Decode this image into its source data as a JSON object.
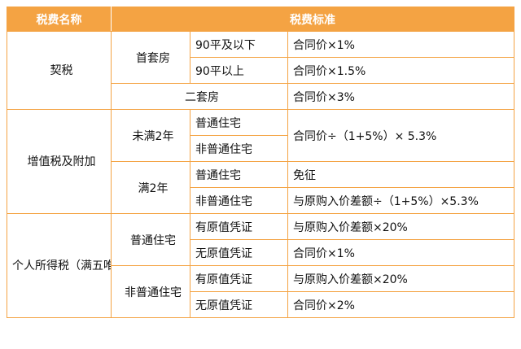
{
  "header": {
    "name": "税费名称",
    "standard": "税费标准"
  },
  "deed_tax": {
    "name": "契税",
    "first_home": "首套房",
    "rows": [
      {
        "area": "90平及以下",
        "value": "合同价×1%"
      },
      {
        "area": "90平以上",
        "value": "合同价×1.5%"
      }
    ],
    "second_home": {
      "label": "二套房",
      "value": "合同价×3%"
    }
  },
  "vat": {
    "name": "增值税及附加",
    "under2": {
      "label": "未满2年",
      "types": [
        "普通住宅",
        "非普通住宅"
      ],
      "value": "合同价÷（1+5%）× 5.3%"
    },
    "over2": {
      "label": "满2年",
      "rows": [
        {
          "type": "普通住宅",
          "value": "免征"
        },
        {
          "type": "非普通住宅",
          "value": "与原购入价差额÷（1+5%）×5.3%"
        }
      ]
    }
  },
  "income_tax": {
    "name": "个人所得税（满五唯一免征）",
    "ordinary": {
      "label": "普通住宅",
      "rows": [
        {
          "cert": "有原值凭证",
          "value": "与原购入价差额×20%"
        },
        {
          "cert": "无原值凭证",
          "value": "合同价×1%"
        }
      ]
    },
    "non_ordinary": {
      "label": "非普通住宅",
      "rows": [
        {
          "cert": "有原值凭证",
          "value": "与原购入价差额×20%"
        },
        {
          "cert": "无原值凭证",
          "value": "合同价×2%"
        }
      ]
    }
  },
  "colors": {
    "header_bg": "#f4a343",
    "border": "#f4a343",
    "header_text": "#ffffff"
  }
}
